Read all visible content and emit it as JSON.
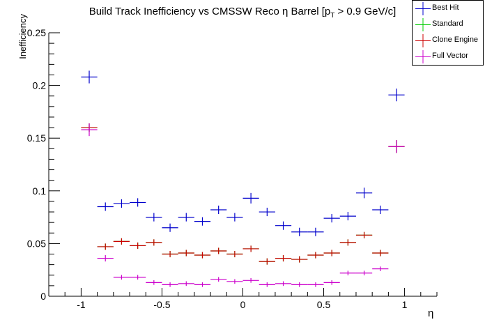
{
  "chart_data": {
    "type": "scatter",
    "title_prefix": "Build Track Inefficiency vs CMSSW Reco η Barrel [p",
    "title_sub": "T",
    "title_suffix": " > 0.9 GeV/c]",
    "xlabel": "η",
    "ylabel": "Inefficiency",
    "xlim": [
      -1.2,
      1.2
    ],
    "ylim": [
      0,
      0.25
    ],
    "x_ticks": [
      -1,
      -0.5,
      0,
      0.5,
      1
    ],
    "x_tick_labels": [
      "-1",
      "-0.5",
      "0",
      "0.5",
      "1"
    ],
    "y_ticks": [
      0,
      0.05,
      0.1,
      0.15,
      0.2,
      0.25
    ],
    "y_tick_labels": [
      "0",
      "0.05",
      "0.1",
      "0.15",
      "0.2",
      "0.25"
    ],
    "x": [
      -0.95,
      -0.85,
      -0.75,
      -0.65,
      -0.55,
      -0.45,
      -0.35,
      -0.25,
      -0.15,
      -0.05,
      0.05,
      0.15,
      0.25,
      0.35,
      0.45,
      0.55,
      0.65,
      0.75,
      0.85,
      0.95
    ],
    "series": [
      {
        "name": "Best Hit",
        "color": "#0000cc",
        "values": [
          0.208,
          0.085,
          0.088,
          0.089,
          0.075,
          0.065,
          0.075,
          0.071,
          0.082,
          0.075,
          0.093,
          0.08,
          0.067,
          0.061,
          0.061,
          0.074,
          0.076,
          0.098,
          0.082,
          0.191
        ],
        "errors": [
          0.006,
          0.004,
          0.004,
          0.004,
          0.004,
          0.004,
          0.004,
          0.004,
          0.004,
          0.004,
          0.005,
          0.004,
          0.004,
          0.004,
          0.004,
          0.004,
          0.004,
          0.005,
          0.004,
          0.006
        ]
      },
      {
        "name": "Standard",
        "color": "#00cc00",
        "values": [
          0.16,
          0.047,
          0.052,
          0.048,
          0.051,
          0.04,
          0.041,
          0.039,
          0.043,
          0.04,
          0.045,
          0.033,
          0.036,
          0.035,
          0.039,
          0.041,
          0.051,
          0.058,
          0.041,
          0.142
        ],
        "errors": [
          0.004,
          0.003,
          0.003,
          0.003,
          0.003,
          0.003,
          0.003,
          0.003,
          0.003,
          0.003,
          0.003,
          0.003,
          0.003,
          0.003,
          0.003,
          0.003,
          0.003,
          0.003,
          0.003,
          0.006
        ]
      },
      {
        "name": "Clone Engine",
        "color": "#cc0000",
        "values": [
          0.16,
          0.047,
          0.052,
          0.048,
          0.051,
          0.04,
          0.041,
          0.039,
          0.043,
          0.04,
          0.045,
          0.033,
          0.036,
          0.035,
          0.039,
          0.041,
          0.051,
          0.058,
          0.041,
          0.142
        ],
        "errors": [
          0.004,
          0.003,
          0.003,
          0.003,
          0.003,
          0.003,
          0.003,
          0.003,
          0.003,
          0.003,
          0.003,
          0.003,
          0.003,
          0.003,
          0.003,
          0.003,
          0.003,
          0.003,
          0.003,
          0.006
        ]
      },
      {
        "name": "Full Vector",
        "color": "#cc00cc",
        "values": [
          0.158,
          0.036,
          0.018,
          0.018,
          0.013,
          0.011,
          0.012,
          0.011,
          0.016,
          0.014,
          0.015,
          0.011,
          0.012,
          0.011,
          0.011,
          0.013,
          0.022,
          0.022,
          0.026,
          0.142
        ],
        "errors": [
          0.006,
          0.003,
          0.002,
          0.002,
          0.002,
          0.002,
          0.002,
          0.002,
          0.002,
          0.002,
          0.002,
          0.002,
          0.002,
          0.002,
          0.002,
          0.002,
          0.002,
          0.002,
          0.002,
          0.006
        ]
      }
    ],
    "legend_position": "top-right",
    "grid": false
  }
}
